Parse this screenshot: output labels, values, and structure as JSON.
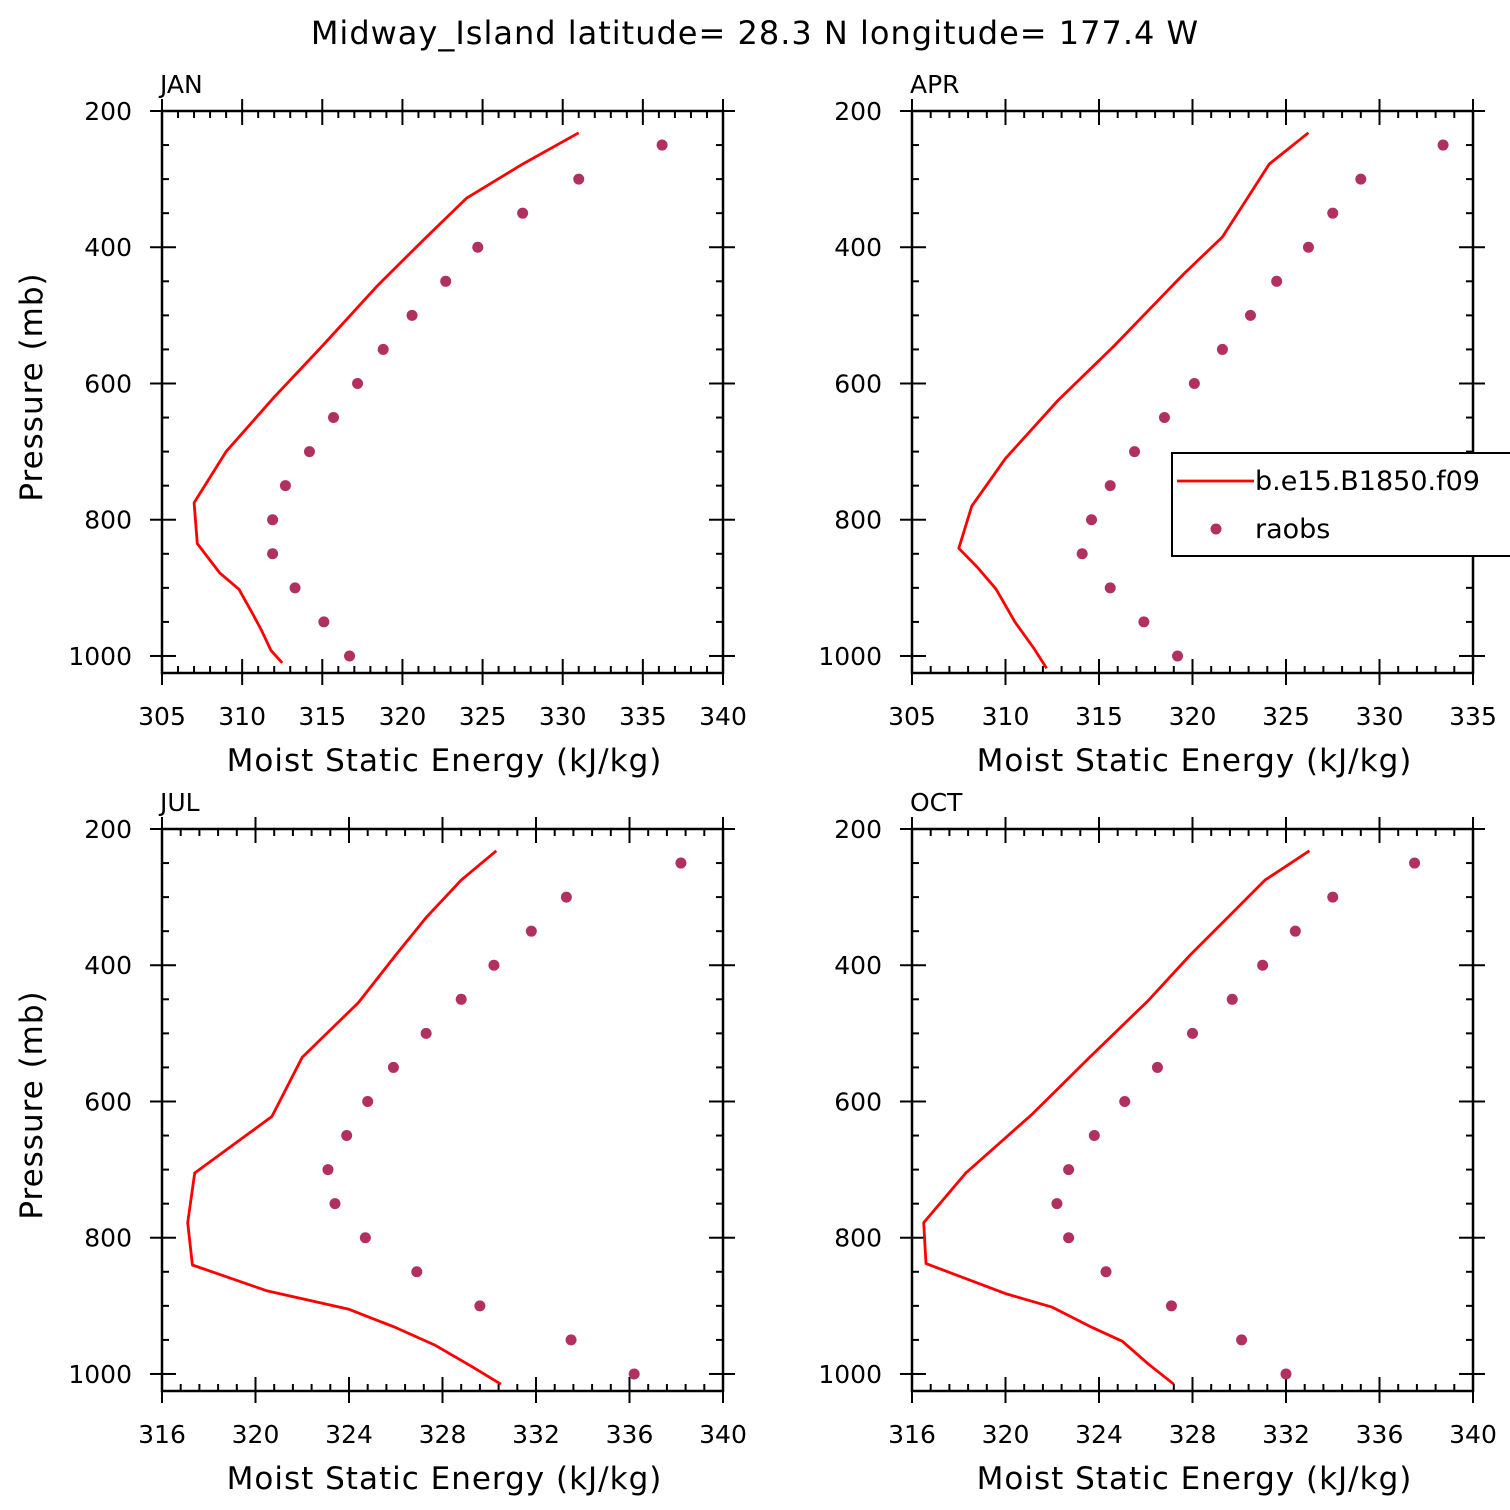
{
  "figure": {
    "title": "Midway_Island  latitude= 28.3 N longitude= 177.4 W"
  },
  "legend": {
    "model_label": "b.e15.B1850.f09",
    "obs_label": "raobs"
  },
  "colors": {
    "model_line": "#ff0000",
    "obs_marker": "#b03060"
  },
  "chart_data": [
    {
      "type": "scatter",
      "panel": "JAN",
      "title": "JAN",
      "xlabel": "Moist Static Energy (kJ/kg)",
      "ylabel": "Pressure (mb)",
      "xlim": [
        305,
        340
      ],
      "ylim": [
        1000,
        200
      ],
      "y_inverted": true,
      "xticks": [
        305,
        310,
        315,
        320,
        325,
        330,
        335,
        340
      ],
      "yticks": [
        200,
        400,
        600,
        800,
        1000
      ],
      "series": [
        {
          "name": "b.e15.B1850.f09",
          "style": "line",
          "points": [
            [
              312.5,
              1010
            ],
            [
              311.8,
              992
            ],
            [
              311.2,
              962
            ],
            [
              310.7,
              940
            ],
            [
              309.8,
              902
            ],
            [
              308.6,
              878
            ],
            [
              307.2,
              835
            ],
            [
              307.0,
              775
            ],
            [
              309.0,
              700
            ],
            [
              312.0,
              620
            ],
            [
              315.0,
              545
            ],
            [
              318.5,
              455
            ],
            [
              321.5,
              385
            ],
            [
              324.0,
              328
            ],
            [
              327.5,
              278
            ],
            [
              331.0,
              232
            ]
          ]
        },
        {
          "name": "raobs",
          "style": "markers",
          "points": [
            [
              336.2,
              250
            ],
            [
              331.0,
              300
            ],
            [
              327.5,
              350
            ],
            [
              324.7,
              400
            ],
            [
              322.7,
              450
            ],
            [
              320.6,
              500
            ],
            [
              318.8,
              550
            ],
            [
              317.2,
              600
            ],
            [
              315.7,
              650
            ],
            [
              314.2,
              700
            ],
            [
              312.7,
              750
            ],
            [
              311.9,
              800
            ],
            [
              311.9,
              850
            ],
            [
              313.3,
              900
            ],
            [
              315.1,
              950
            ],
            [
              316.7,
              1000
            ]
          ]
        }
      ]
    },
    {
      "type": "scatter",
      "panel": "APR",
      "title": "APR",
      "xlabel": "Moist Static Energy (kJ/kg)",
      "ylabel": "",
      "xlim": [
        305,
        335
      ],
      "ylim": [
        1000,
        200
      ],
      "y_inverted": true,
      "xticks": [
        305,
        310,
        315,
        320,
        325,
        330,
        335
      ],
      "yticks": [
        200,
        400,
        600,
        800,
        1000
      ],
      "legend_position": "right",
      "series": [
        {
          "name": "b.e15.B1850.f09",
          "style": "line",
          "points": [
            [
              312.2,
              1018
            ],
            [
              311.5,
              988
            ],
            [
              310.5,
              950
            ],
            [
              309.5,
              902
            ],
            [
              308.5,
              870
            ],
            [
              307.5,
              842
            ],
            [
              308.2,
              780
            ],
            [
              310.0,
              710
            ],
            [
              312.8,
              625
            ],
            [
              315.8,
              545
            ],
            [
              319.5,
              440
            ],
            [
              321.6,
              385
            ],
            [
              323.0,
              325
            ],
            [
              324.1,
              278
            ],
            [
              326.2,
              232
            ]
          ]
        },
        {
          "name": "raobs",
          "style": "markers",
          "points": [
            [
              333.4,
              250
            ],
            [
              329.0,
              300
            ],
            [
              327.5,
              350
            ],
            [
              326.2,
              400
            ],
            [
              324.5,
              450
            ],
            [
              323.1,
              500
            ],
            [
              321.6,
              550
            ],
            [
              320.1,
              600
            ],
            [
              318.5,
              650
            ],
            [
              316.9,
              700
            ],
            [
              315.6,
              750
            ],
            [
              314.6,
              800
            ],
            [
              314.1,
              850
            ],
            [
              315.6,
              900
            ],
            [
              317.4,
              950
            ],
            [
              319.2,
              1000
            ]
          ]
        }
      ]
    },
    {
      "type": "scatter",
      "panel": "JUL",
      "title": "JUL",
      "xlabel": "Moist Static Energy (kJ/kg)",
      "ylabel": "Pressure (mb)",
      "xlim": [
        316,
        340
      ],
      "ylim": [
        1000,
        200
      ],
      "y_inverted": true,
      "xticks": [
        316,
        320,
        324,
        328,
        332,
        336,
        340
      ],
      "yticks": [
        200,
        400,
        600,
        800,
        1000
      ],
      "series": [
        {
          "name": "b.e15.B1850.f09",
          "style": "line",
          "points": [
            [
              330.5,
              1015
            ],
            [
              329.3,
              990
            ],
            [
              327.7,
              958
            ],
            [
              326.0,
              932
            ],
            [
              324.0,
              905
            ],
            [
              320.5,
              878
            ],
            [
              317.3,
              840
            ],
            [
              317.1,
              778
            ],
            [
              317.4,
              705
            ],
            [
              320.7,
              622
            ],
            [
              322.0,
              535
            ],
            [
              324.4,
              455
            ],
            [
              326.0,
              385
            ],
            [
              327.3,
              330
            ],
            [
              328.8,
              275
            ],
            [
              330.3,
              232
            ]
          ]
        },
        {
          "name": "raobs",
          "style": "markers",
          "points": [
            [
              338.2,
              250
            ],
            [
              333.3,
              300
            ],
            [
              331.8,
              350
            ],
            [
              330.2,
              400
            ],
            [
              328.8,
              450
            ],
            [
              327.3,
              500
            ],
            [
              325.9,
              550
            ],
            [
              324.8,
              600
            ],
            [
              323.9,
              650
            ],
            [
              323.1,
              700
            ],
            [
              323.4,
              750
            ],
            [
              324.7,
              800
            ],
            [
              326.9,
              850
            ],
            [
              329.6,
              900
            ],
            [
              333.5,
              950
            ],
            [
              336.2,
              1000
            ]
          ]
        }
      ]
    },
    {
      "type": "scatter",
      "panel": "OCT",
      "title": "OCT",
      "xlabel": "Moist Static Energy (kJ/kg)",
      "ylabel": "",
      "xlim": [
        316,
        340
      ],
      "ylim": [
        1000,
        200
      ],
      "y_inverted": true,
      "xticks": [
        316,
        320,
        324,
        328,
        332,
        336,
        340
      ],
      "yticks": [
        200,
        400,
        600,
        800,
        1000
      ],
      "series": [
        {
          "name": "b.e15.B1850.f09",
          "style": "line",
          "points": [
            [
              327.2,
              1015
            ],
            [
              326.1,
              985
            ],
            [
              325.0,
              952
            ],
            [
              323.6,
              930
            ],
            [
              322.0,
              902
            ],
            [
              320.0,
              882
            ],
            [
              316.6,
              838
            ],
            [
              316.5,
              778
            ],
            [
              318.3,
              705
            ],
            [
              321.1,
              620
            ],
            [
              323.6,
              535
            ],
            [
              326.1,
              452
            ],
            [
              327.9,
              385
            ],
            [
              329.5,
              330
            ],
            [
              331.1,
              275
            ],
            [
              333.0,
              232
            ]
          ]
        },
        {
          "name": "raobs",
          "style": "markers",
          "points": [
            [
              337.5,
              250
            ],
            [
              334.0,
              300
            ],
            [
              332.4,
              350
            ],
            [
              331.0,
              400
            ],
            [
              329.7,
              450
            ],
            [
              328.0,
              500
            ],
            [
              326.5,
              550
            ],
            [
              325.1,
              600
            ],
            [
              323.8,
              650
            ],
            [
              322.7,
              700
            ],
            [
              322.2,
              750
            ],
            [
              322.7,
              800
            ],
            [
              324.3,
              850
            ],
            [
              327.1,
              900
            ],
            [
              330.1,
              950
            ],
            [
              332.0,
              1000
            ]
          ]
        }
      ]
    }
  ]
}
